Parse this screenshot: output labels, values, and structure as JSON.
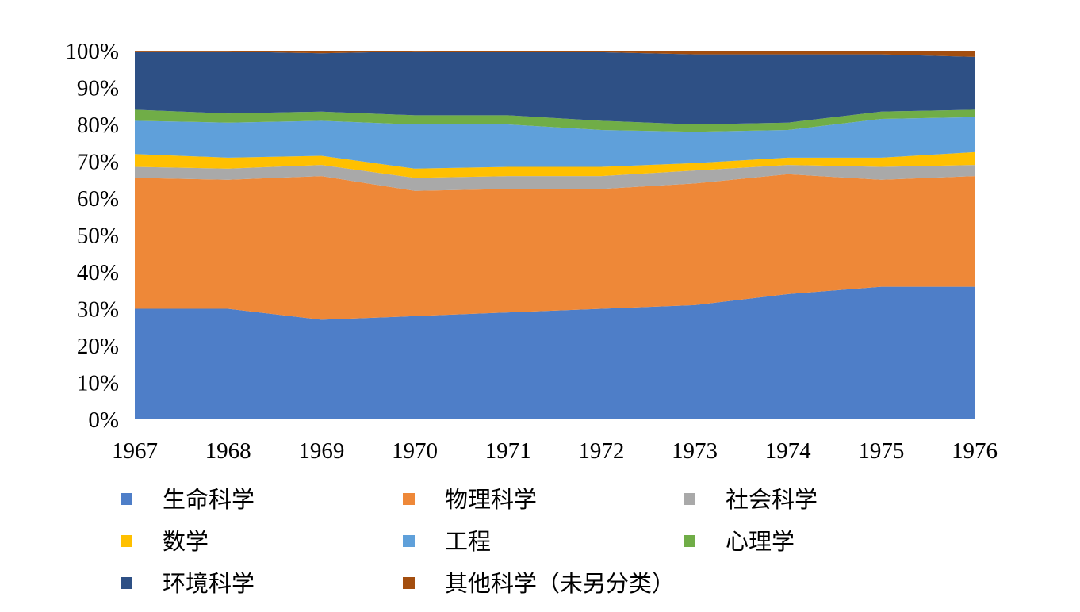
{
  "chart_data": {
    "type": "area",
    "stacked": true,
    "normalized": true,
    "x": [
      "1967",
      "1968",
      "1969",
      "1970",
      "1971",
      "1972",
      "1973",
      "1974",
      "1975",
      "1976"
    ],
    "y_ticks": [
      "0%",
      "10%",
      "20%",
      "30%",
      "40%",
      "50%",
      "60%",
      "70%",
      "80%",
      "90%",
      "100%"
    ],
    "ylim": [
      0,
      100
    ],
    "grid": false,
    "legend_position": "bottom",
    "series": [
      {
        "name": "生命科学",
        "color": "#4E7EC8",
        "values": [
          30,
          30,
          27,
          28,
          29,
          30,
          31,
          34,
          36,
          36
        ]
      },
      {
        "name": "物理科学",
        "color": "#EE8838",
        "values": [
          35.5,
          35,
          39,
          34,
          33.5,
          32.5,
          33,
          32.5,
          29,
          30
        ]
      },
      {
        "name": "社会科学",
        "color": "#A9A9A9",
        "values": [
          3,
          3,
          3,
          3.5,
          3.5,
          3.5,
          3.5,
          2.5,
          3.5,
          3
        ]
      },
      {
        "name": "数学",
        "color": "#FFC000",
        "values": [
          3.5,
          3,
          2.5,
          2.5,
          2.5,
          2.5,
          2,
          2,
          2.5,
          3.5
        ]
      },
      {
        "name": "工程",
        "color": "#5FA0DA",
        "values": [
          9,
          9.5,
          9.5,
          12,
          11.5,
          10,
          8.5,
          7.5,
          10.5,
          9.5
        ]
      },
      {
        "name": "心理学",
        "color": "#70AD47",
        "values": [
          3,
          2.5,
          2.5,
          2.5,
          2.5,
          2.5,
          2,
          2,
          2,
          2
        ]
      },
      {
        "name": "环境科学",
        "color": "#2E5085",
        "values": [
          15.8,
          16.8,
          15.8,
          17.3,
          17.2,
          18.6,
          19,
          18.5,
          15.5,
          14.3
        ]
      },
      {
        "name": "其他科学（未另分类）",
        "color": "#A34E0F",
        "values": [
          0.2,
          0.2,
          0.7,
          0.2,
          0.3,
          0.4,
          1,
          1,
          1,
          1.7
        ]
      }
    ]
  }
}
